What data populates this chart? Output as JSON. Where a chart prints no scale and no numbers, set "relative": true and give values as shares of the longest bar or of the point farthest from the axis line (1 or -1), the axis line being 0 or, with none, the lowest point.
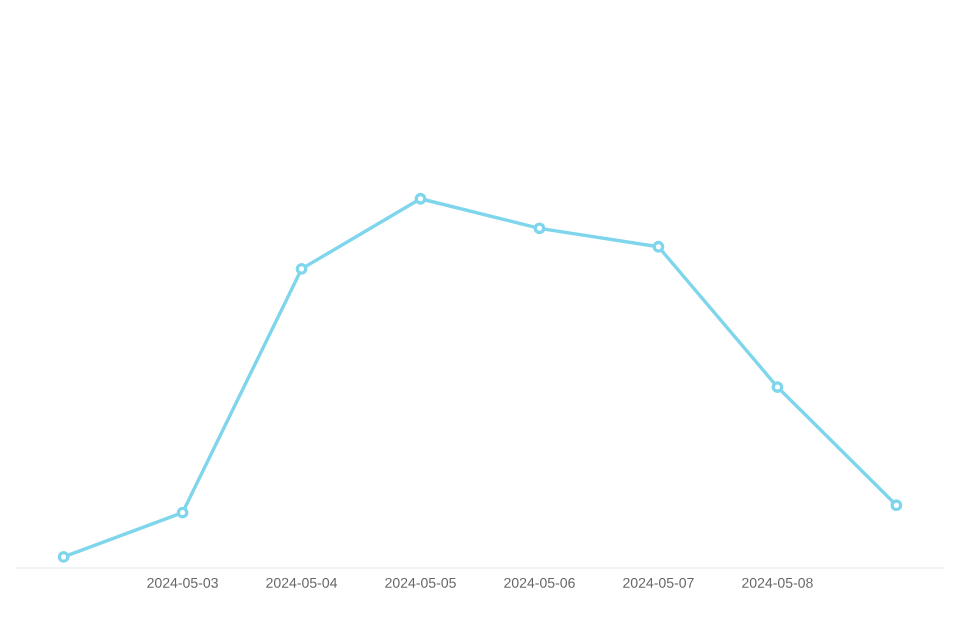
{
  "chart_data": {
    "type": "line",
    "relative": true,
    "categories": [
      null,
      "2024-05-03",
      "2024-05-04",
      "2024-05-05",
      "2024-05-06",
      "2024-05-07",
      "2024-05-08",
      null
    ],
    "series": [
      {
        "color": "#7fd6ec",
        "values": [
          0.03,
          0.15,
          0.81,
          1,
          0.92,
          0.87,
          0.49,
          0.17
        ]
      }
    ],
    "marker": "circle"
  }
}
